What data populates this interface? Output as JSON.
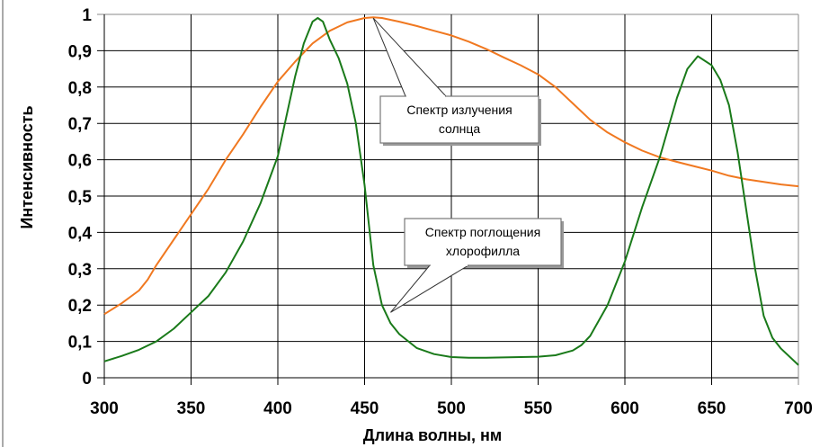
{
  "chart_data": {
    "type": "line",
    "title": "",
    "xlabel": "Длина волны, нм",
    "ylabel": "Интенсивность",
    "xlim": [
      300,
      700
    ],
    "ylim": [
      0,
      1
    ],
    "x_ticks": [
      "300",
      "350",
      "400",
      "450",
      "500",
      "550",
      "600",
      "650",
      "700"
    ],
    "y_ticks": [
      "0",
      "0,1",
      "0,2",
      "0,3",
      "0,4",
      "0,5",
      "0,6",
      "0,7",
      "0,8",
      "0,9",
      "1"
    ],
    "grid": true,
    "legend": "none",
    "series": [
      {
        "name": "Спектр излучения солнца",
        "color": "#f07820",
        "points": [
          [
            300,
            0.175
          ],
          [
            310,
            0.205
          ],
          [
            320,
            0.24
          ],
          [
            325,
            0.27
          ],
          [
            330,
            0.31
          ],
          [
            340,
            0.38
          ],
          [
            350,
            0.45
          ],
          [
            360,
            0.52
          ],
          [
            370,
            0.6
          ],
          [
            380,
            0.67
          ],
          [
            390,
            0.745
          ],
          [
            400,
            0.815
          ],
          [
            410,
            0.87
          ],
          [
            420,
            0.92
          ],
          [
            430,
            0.955
          ],
          [
            440,
            0.978
          ],
          [
            450,
            0.99
          ],
          [
            455,
            0.992
          ],
          [
            460,
            0.99
          ],
          [
            470,
            0.98
          ],
          [
            480,
            0.968
          ],
          [
            490,
            0.955
          ],
          [
            500,
            0.942
          ],
          [
            510,
            0.925
          ],
          [
            520,
            0.905
          ],
          [
            530,
            0.882
          ],
          [
            540,
            0.86
          ],
          [
            550,
            0.835
          ],
          [
            560,
            0.8
          ],
          [
            570,
            0.755
          ],
          [
            580,
            0.71
          ],
          [
            590,
            0.675
          ],
          [
            600,
            0.648
          ],
          [
            610,
            0.625
          ],
          [
            620,
            0.607
          ],
          [
            630,
            0.594
          ],
          [
            640,
            0.582
          ],
          [
            650,
            0.57
          ],
          [
            660,
            0.556
          ],
          [
            670,
            0.546
          ],
          [
            680,
            0.539
          ],
          [
            690,
            0.532
          ],
          [
            700,
            0.527
          ]
        ]
      },
      {
        "name": "Спектр поглощения хлорофилла",
        "color": "#1a7a1a",
        "points": [
          [
            300,
            0.045
          ],
          [
            310,
            0.06
          ],
          [
            320,
            0.077
          ],
          [
            330,
            0.1
          ],
          [
            340,
            0.135
          ],
          [
            350,
            0.18
          ],
          [
            360,
            0.225
          ],
          [
            370,
            0.29
          ],
          [
            380,
            0.375
          ],
          [
            390,
            0.48
          ],
          [
            400,
            0.61
          ],
          [
            405,
            0.72
          ],
          [
            410,
            0.83
          ],
          [
            415,
            0.92
          ],
          [
            420,
            0.98
          ],
          [
            423,
            0.99
          ],
          [
            426,
            0.98
          ],
          [
            430,
            0.93
          ],
          [
            435,
            0.88
          ],
          [
            440,
            0.81
          ],
          [
            445,
            0.7
          ],
          [
            450,
            0.53
          ],
          [
            455,
            0.31
          ],
          [
            460,
            0.2
          ],
          [
            465,
            0.15
          ],
          [
            470,
            0.12
          ],
          [
            480,
            0.082
          ],
          [
            490,
            0.065
          ],
          [
            500,
            0.057
          ],
          [
            510,
            0.055
          ],
          [
            520,
            0.055
          ],
          [
            530,
            0.056
          ],
          [
            540,
            0.057
          ],
          [
            550,
            0.058
          ],
          [
            560,
            0.062
          ],
          [
            570,
            0.075
          ],
          [
            575,
            0.09
          ],
          [
            580,
            0.115
          ],
          [
            590,
            0.2
          ],
          [
            600,
            0.32
          ],
          [
            610,
            0.47
          ],
          [
            620,
            0.605
          ],
          [
            630,
            0.77
          ],
          [
            636,
            0.85
          ],
          [
            642,
            0.885
          ],
          [
            650,
            0.86
          ],
          [
            655,
            0.82
          ],
          [
            660,
            0.75
          ],
          [
            665,
            0.62
          ],
          [
            670,
            0.46
          ],
          [
            675,
            0.3
          ],
          [
            680,
            0.17
          ],
          [
            685,
            0.11
          ],
          [
            690,
            0.08
          ],
          [
            700,
            0.035
          ]
        ]
      }
    ],
    "annotations": [
      {
        "lines": [
          "Спектр излучения",
          "солнца"
        ],
        "target": [
          455,
          0.99
        ]
      },
      {
        "lines": [
          "Спектр поглощения",
          "хлорофилла"
        ],
        "target": [
          465,
          0.18
        ]
      }
    ]
  }
}
